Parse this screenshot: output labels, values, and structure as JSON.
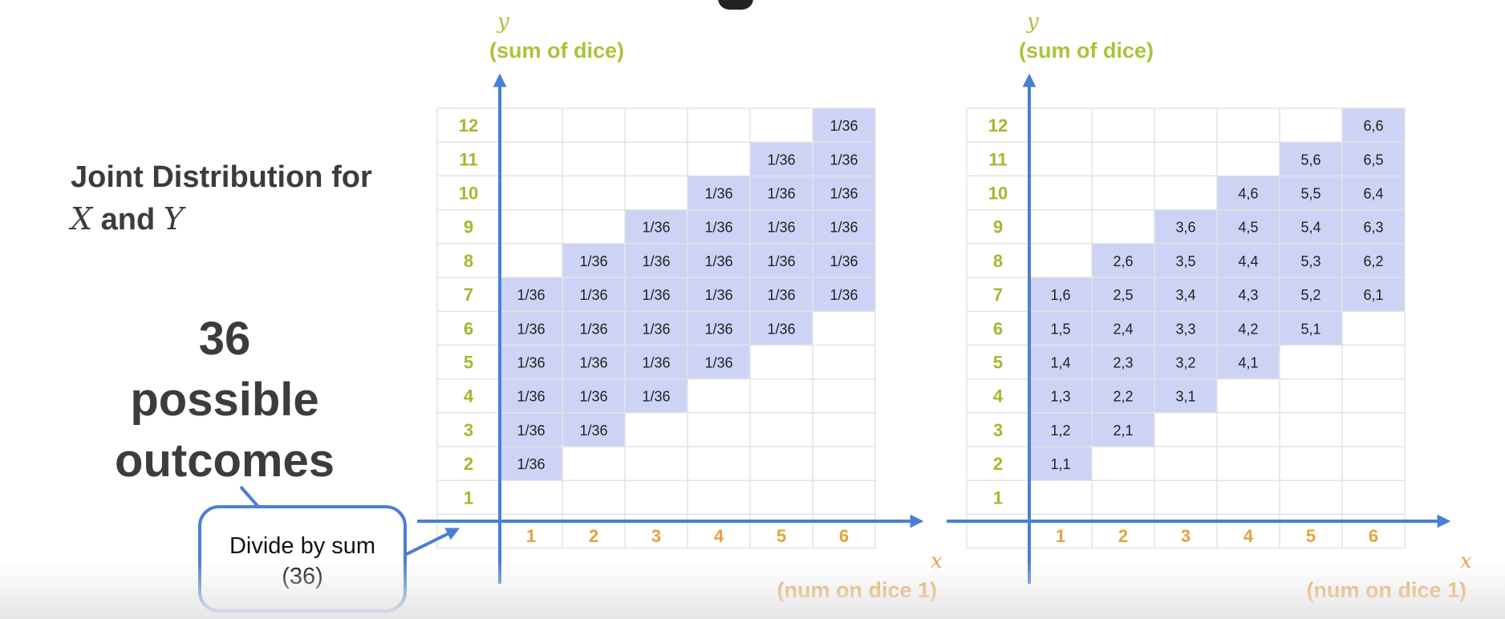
{
  "side_title": {
    "line1": "Joint Distribution for",
    "x": "X",
    "and": "and",
    "y": "Y"
  },
  "big_note": {
    "line1": "36",
    "line2": "possible",
    "line3": "outcomes"
  },
  "callout": {
    "line1": "Divide by sum",
    "line2": "(36)"
  },
  "colors": {
    "accent": "#4a7fd4",
    "cell_fill": "#ccd3f5",
    "y_tick": "#9dbb2e",
    "x_tick": "#e6a23c",
    "y_label": "#a7c53a",
    "x_label": "#e8a54a"
  },
  "chart_data": [
    {
      "type": "table",
      "y_axis": {
        "var": "y",
        "label": "(sum of dice)",
        "ticks": [
          1,
          2,
          3,
          4,
          5,
          6,
          7,
          8,
          9,
          10,
          11,
          12
        ]
      },
      "x_axis": {
        "var": "x",
        "label": "(num on dice 1)",
        "ticks": [
          1,
          2,
          3,
          4,
          5,
          6
        ]
      },
      "cells": [
        {
          "x": 1,
          "y": 2,
          "text": "1/36"
        },
        {
          "x": 1,
          "y": 3,
          "text": "1/36"
        },
        {
          "x": 1,
          "y": 4,
          "text": "1/36"
        },
        {
          "x": 1,
          "y": 5,
          "text": "1/36"
        },
        {
          "x": 1,
          "y": 6,
          "text": "1/36"
        },
        {
          "x": 1,
          "y": 7,
          "text": "1/36"
        },
        {
          "x": 2,
          "y": 3,
          "text": "1/36"
        },
        {
          "x": 2,
          "y": 4,
          "text": "1/36"
        },
        {
          "x": 2,
          "y": 5,
          "text": "1/36"
        },
        {
          "x": 2,
          "y": 6,
          "text": "1/36"
        },
        {
          "x": 2,
          "y": 7,
          "text": "1/36"
        },
        {
          "x": 2,
          "y": 8,
          "text": "1/36"
        },
        {
          "x": 3,
          "y": 4,
          "text": "1/36"
        },
        {
          "x": 3,
          "y": 5,
          "text": "1/36"
        },
        {
          "x": 3,
          "y": 6,
          "text": "1/36"
        },
        {
          "x": 3,
          "y": 7,
          "text": "1/36"
        },
        {
          "x": 3,
          "y": 8,
          "text": "1/36"
        },
        {
          "x": 3,
          "y": 9,
          "text": "1/36"
        },
        {
          "x": 4,
          "y": 5,
          "text": "1/36"
        },
        {
          "x": 4,
          "y": 6,
          "text": "1/36"
        },
        {
          "x": 4,
          "y": 7,
          "text": "1/36"
        },
        {
          "x": 4,
          "y": 8,
          "text": "1/36"
        },
        {
          "x": 4,
          "y": 9,
          "text": "1/36"
        },
        {
          "x": 4,
          "y": 10,
          "text": "1/36"
        },
        {
          "x": 5,
          "y": 6,
          "text": "1/36"
        },
        {
          "x": 5,
          "y": 7,
          "text": "1/36"
        },
        {
          "x": 5,
          "y": 8,
          "text": "1/36"
        },
        {
          "x": 5,
          "y": 9,
          "text": "1/36"
        },
        {
          "x": 5,
          "y": 10,
          "text": "1/36"
        },
        {
          "x": 5,
          "y": 11,
          "text": "1/36"
        },
        {
          "x": 6,
          "y": 7,
          "text": "1/36"
        },
        {
          "x": 6,
          "y": 8,
          "text": "1/36"
        },
        {
          "x": 6,
          "y": 9,
          "text": "1/36"
        },
        {
          "x": 6,
          "y": 10,
          "text": "1/36"
        },
        {
          "x": 6,
          "y": 11,
          "text": "1/36"
        },
        {
          "x": 6,
          "y": 12,
          "text": "1/36"
        }
      ]
    },
    {
      "type": "table",
      "y_axis": {
        "var": "y",
        "label": "(sum of dice)",
        "ticks": [
          1,
          2,
          3,
          4,
          5,
          6,
          7,
          8,
          9,
          10,
          11,
          12
        ]
      },
      "x_axis": {
        "var": "x",
        "label": "(num on dice 1)",
        "ticks": [
          1,
          2,
          3,
          4,
          5,
          6
        ]
      },
      "cells": [
        {
          "x": 1,
          "y": 2,
          "text": "1,1"
        },
        {
          "x": 1,
          "y": 3,
          "text": "1,2"
        },
        {
          "x": 1,
          "y": 4,
          "text": "1,3"
        },
        {
          "x": 1,
          "y": 5,
          "text": "1,4"
        },
        {
          "x": 1,
          "y": 6,
          "text": "1,5"
        },
        {
          "x": 1,
          "y": 7,
          "text": "1,6"
        },
        {
          "x": 2,
          "y": 3,
          "text": "2,1"
        },
        {
          "x": 2,
          "y": 4,
          "text": "2,2"
        },
        {
          "x": 2,
          "y": 5,
          "text": "2,3"
        },
        {
          "x": 2,
          "y": 6,
          "text": "2,4"
        },
        {
          "x": 2,
          "y": 7,
          "text": "2,5"
        },
        {
          "x": 2,
          "y": 8,
          "text": "2,6"
        },
        {
          "x": 3,
          "y": 4,
          "text": "3,1"
        },
        {
          "x": 3,
          "y": 5,
          "text": "3,2"
        },
        {
          "x": 3,
          "y": 6,
          "text": "3,3"
        },
        {
          "x": 3,
          "y": 7,
          "text": "3,4"
        },
        {
          "x": 3,
          "y": 8,
          "text": "3,5"
        },
        {
          "x": 3,
          "y": 9,
          "text": "3,6"
        },
        {
          "x": 4,
          "y": 5,
          "text": "4,1"
        },
        {
          "x": 4,
          "y": 6,
          "text": "4,2"
        },
        {
          "x": 4,
          "y": 7,
          "text": "4,3"
        },
        {
          "x": 4,
          "y": 8,
          "text": "4,4"
        },
        {
          "x": 4,
          "y": 9,
          "text": "4,5"
        },
        {
          "x": 4,
          "y": 10,
          "text": "4,6"
        },
        {
          "x": 5,
          "y": 6,
          "text": "5,1"
        },
        {
          "x": 5,
          "y": 7,
          "text": "5,2"
        },
        {
          "x": 5,
          "y": 8,
          "text": "5,3"
        },
        {
          "x": 5,
          "y": 9,
          "text": "5,4"
        },
        {
          "x": 5,
          "y": 10,
          "text": "5,5"
        },
        {
          "x": 5,
          "y": 11,
          "text": "5,6"
        },
        {
          "x": 6,
          "y": 7,
          "text": "6,1"
        },
        {
          "x": 6,
          "y": 8,
          "text": "6,2"
        },
        {
          "x": 6,
          "y": 9,
          "text": "6,3"
        },
        {
          "x": 6,
          "y": 10,
          "text": "6,4"
        },
        {
          "x": 6,
          "y": 11,
          "text": "6,5"
        },
        {
          "x": 6,
          "y": 12,
          "text": "6,6"
        }
      ]
    }
  ]
}
